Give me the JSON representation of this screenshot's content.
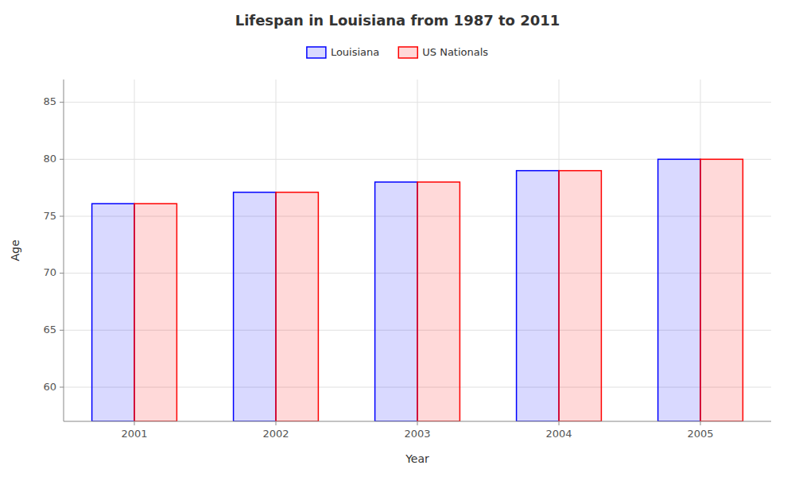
{
  "chart_data": {
    "type": "bar",
    "title": "Lifespan in Louisiana from 1987 to 2011",
    "x_label": "Year",
    "y_label": "Age",
    "categories": [
      "2001",
      "2002",
      "2003",
      "2004",
      "2005"
    ],
    "series": [
      {
        "name": "Louisiana",
        "color": "#0000ff",
        "values": [
          76.1,
          77.1,
          78.0,
          79.0,
          80.0
        ]
      },
      {
        "name": "US Nationals",
        "color": "#ff0000",
        "values": [
          76.1,
          77.1,
          78.0,
          79.0,
          80.0
        ]
      }
    ],
    "ylim": [
      57,
      87
    ],
    "yticks": [
      60,
      65,
      70,
      75,
      80,
      85
    ],
    "grid": true,
    "legend": "top"
  }
}
